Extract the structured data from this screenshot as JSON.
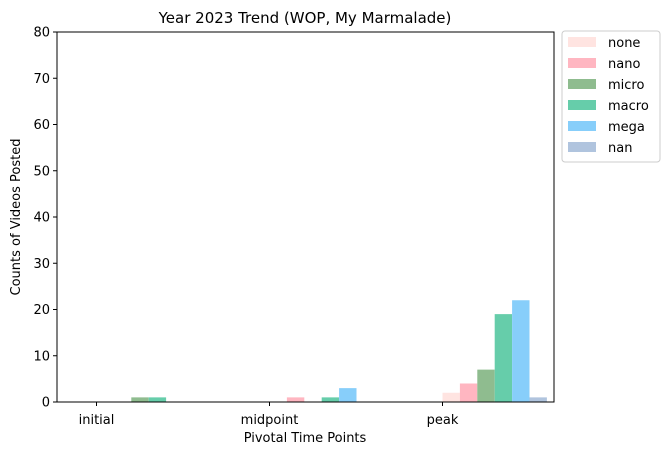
{
  "chart_data": {
    "type": "bar",
    "title": "Year 2023 Trend (WOP, My Marmalade)",
    "xlabel": "Pivotal Time Points",
    "ylabel": "Counts of Videos Posted",
    "categories": [
      "initial",
      "midpoint",
      "peak"
    ],
    "ylim": [
      0,
      80
    ],
    "yticks": [
      "0",
      "10",
      "20",
      "30",
      "40",
      "50",
      "60",
      "70",
      "80"
    ],
    "grid": false,
    "legend_position": "outside-right-top",
    "series": [
      {
        "name": "none",
        "color": "#ffe4e1",
        "values": [
          0,
          0,
          2
        ]
      },
      {
        "name": "nano",
        "color": "#ffb6c1",
        "values": [
          0,
          1,
          4
        ]
      },
      {
        "name": "micro",
        "color": "#8fbc8f",
        "values": [
          1,
          0,
          7
        ]
      },
      {
        "name": "macro",
        "color": "#66cdaa",
        "values": [
          1,
          1,
          19
        ]
      },
      {
        "name": "mega",
        "color": "#87cefa",
        "values": [
          0,
          3,
          22
        ]
      },
      {
        "name": "nan",
        "color": "#b0c4de",
        "values": [
          0,
          0,
          1
        ]
      }
    ]
  }
}
